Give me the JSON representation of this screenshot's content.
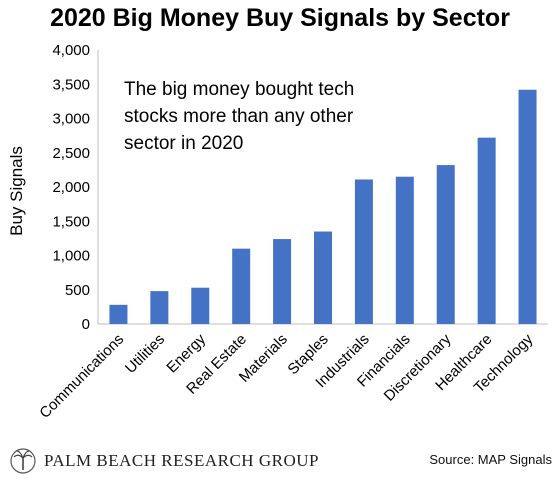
{
  "header": {
    "title": "2020 Big Money Buy Signals by Sector"
  },
  "chart_data": {
    "type": "bar",
    "title": "2020 Big Money Buy Signals by Sector",
    "xlabel": "",
    "ylabel": "Buy Signals",
    "ylim": [
      0,
      4000
    ],
    "yticks": [
      "0",
      "500",
      "1,000",
      "1,500",
      "2,000",
      "2,500",
      "3,000",
      "3,500",
      "4,000"
    ],
    "ytick_values": [
      0,
      500,
      1000,
      1500,
      2000,
      2500,
      3000,
      3500,
      4000
    ],
    "categories": [
      "Communications",
      "Utilities",
      "Energy",
      "Real Estate",
      "Materials",
      "Staples",
      "Industrials",
      "Financials",
      "Discretionary",
      "Healthcare",
      "Technology"
    ],
    "values": [
      280,
      480,
      530,
      1100,
      1240,
      1350,
      2110,
      2150,
      2320,
      2720,
      3420
    ],
    "bar_color": "#4472C4",
    "grid": false,
    "annotation": [
      "The big money bought tech",
      "stocks more than any other",
      "sector in 2020"
    ]
  },
  "footer": {
    "brand": "PALM BEACH RESEARCH GROUP",
    "source": "Source: MAP Signals"
  }
}
